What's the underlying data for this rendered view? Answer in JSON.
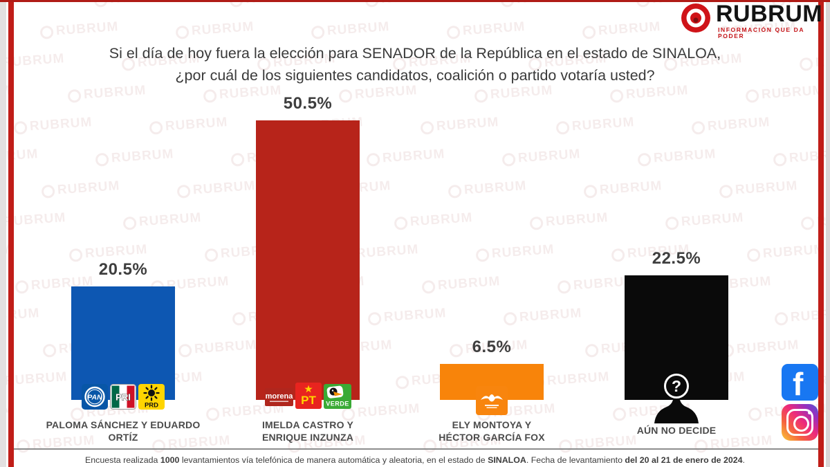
{
  "brand": {
    "name": "RUBRUM",
    "tagline": "INFORMACIÓN QUE DA PODER",
    "watermark": "RUBRUM",
    "accent_red": "#c01d18"
  },
  "title": {
    "line1": "Si el día de hoy fuera la elección para SENADOR de la República en el estado de SINALOA,",
    "line2": "¿por cuál de los siguientes candidatos, coalición o partido votaría usted?"
  },
  "chart_data": {
    "type": "bar",
    "title": "Si el día de hoy fuera la elección para SENADOR de la República en el estado de SINALOA, ¿por cuál de los siguientes candidatos, coalición o partido votaría usted?",
    "categories": [
      "PALOMA SÁNCHEZ Y EDUARDO ORTÍZ",
      "IMELDA CASTRO Y ENRIQUE INZUNZA",
      "ELY MONTOYA Y HÉCTOR GARCÍA FOX",
      "AÚN NO DECIDE"
    ],
    "values": [
      20.5,
      50.5,
      6.5,
      22.5
    ],
    "value_labels": [
      "20.5%",
      "50.5%",
      "6.5%",
      "22.5%"
    ],
    "bar_colors": [
      "#0d57b2",
      "#b7241a",
      "#f8840a",
      "#0a0a0a"
    ],
    "coalitions": [
      [
        "PAN",
        "PRI",
        "PRD"
      ],
      [
        "MORENA",
        "PT",
        "VERDE"
      ],
      [
        "MC"
      ],
      []
    ],
    "xlabel": "",
    "ylabel": "",
    "ylim": [
      0,
      55
    ],
    "grid": false,
    "legend": false
  },
  "bars": [
    {
      "pct_label": "20.5%",
      "value": 20.5,
      "color": "#0d57b2",
      "label_line1": "PALOMA SÁNCHEZ Y EDUARDO",
      "label_line2": "ORTÍZ"
    },
    {
      "pct_label": "50.5%",
      "value": 50.5,
      "color": "#b7241a",
      "label_line1": "IMELDA CASTRO Y",
      "label_line2": "ENRIQUE INZUNZA"
    },
    {
      "pct_label": "6.5%",
      "value": 6.5,
      "color": "#f8840a",
      "label_line1": "ELY MONTOYA Y",
      "label_line2": "HÉCTOR GARCÍA FOX"
    },
    {
      "pct_label": "22.5%",
      "value": 22.5,
      "color": "#0a0a0a",
      "label_line1": "AÚN NO DECIDE",
      "label_line2": ""
    }
  ],
  "party_logos": {
    "pan": "PAN",
    "pri": "PRI",
    "prd": "PRD",
    "morena": "morena",
    "pt": "PT",
    "verde": "VERDE"
  },
  "silhouette": {
    "mark": "?"
  },
  "social": {
    "facebook_glyph": "f"
  },
  "footer": {
    "parts": [
      {
        "text": "Encuesta realizada "
      },
      {
        "text": "1000"
      },
      {
        "text": " levantamientos vía telefónica de manera automática y aleatoria, en el estado de "
      },
      {
        "text": "SINALOA"
      },
      {
        "text": ". Fecha de levantamiento "
      },
      {
        "text": "del 20 al 21 de enero de 2024"
      },
      {
        "text": "."
      }
    ]
  }
}
